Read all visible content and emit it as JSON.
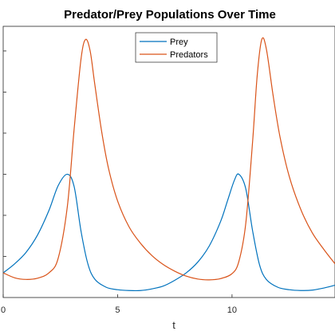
{
  "chart_data": {
    "type": "line",
    "title": "Predator/Prey Populations Over Time",
    "xlabel": "t",
    "ylabel": "",
    "xlim": [
      0,
      14.5
    ],
    "ylim": [
      0,
      6.6
    ],
    "xticks": [
      0,
      5,
      10
    ],
    "xtick_labels": [
      "0",
      "5",
      "10"
    ],
    "grid": false,
    "legend": "top-center",
    "series": [
      {
        "name": "Prey",
        "color": "#0072BD",
        "x": [
          0,
          0.5,
          1.0,
          1.5,
          2.0,
          2.4,
          2.8,
          3.1,
          3.4,
          3.7,
          4.0,
          4.5,
          5.0,
          5.5,
          6.0,
          6.5,
          7.0,
          7.5,
          8.0,
          8.5,
          9.0,
          9.5,
          9.8,
          10.1,
          10.3,
          10.6,
          10.9,
          11.2,
          11.5,
          12.0,
          12.5,
          13.0,
          13.5,
          14.0,
          14.5
        ],
        "y": [
          0.6,
          0.82,
          1.1,
          1.52,
          2.12,
          2.72,
          3.0,
          2.7,
          1.62,
          0.82,
          0.45,
          0.25,
          0.19,
          0.17,
          0.17,
          0.21,
          0.28,
          0.42,
          0.6,
          0.86,
          1.25,
          1.85,
          2.35,
          2.85,
          3.0,
          2.65,
          1.62,
          0.8,
          0.44,
          0.25,
          0.19,
          0.17,
          0.18,
          0.23,
          0.3
        ]
      },
      {
        "name": "Predators",
        "color": "#D95319",
        "x": [
          0,
          0.5,
          1.0,
          1.5,
          2.0,
          2.4,
          2.8,
          3.1,
          3.4,
          3.6,
          3.8,
          4.0,
          4.3,
          4.6,
          5.0,
          5.5,
          6.0,
          6.5,
          7.0,
          7.5,
          8.0,
          8.5,
          9.0,
          9.5,
          10.0,
          10.3,
          10.6,
          10.9,
          11.1,
          11.3,
          11.5,
          11.8,
          12.1,
          12.5,
          13.0,
          13.5,
          14.0,
          14.5
        ],
        "y": [
          0.6,
          0.48,
          0.44,
          0.47,
          0.6,
          0.95,
          2.2,
          4.1,
          5.8,
          6.28,
          6.0,
          5.2,
          4.05,
          3.15,
          2.35,
          1.72,
          1.32,
          1.02,
          0.8,
          0.64,
          0.52,
          0.45,
          0.43,
          0.46,
          0.58,
          0.88,
          1.8,
          3.8,
          5.4,
          6.28,
          6.05,
          4.9,
          3.9,
          2.95,
          2.15,
          1.58,
          1.18,
          0.82
        ]
      }
    ]
  }
}
